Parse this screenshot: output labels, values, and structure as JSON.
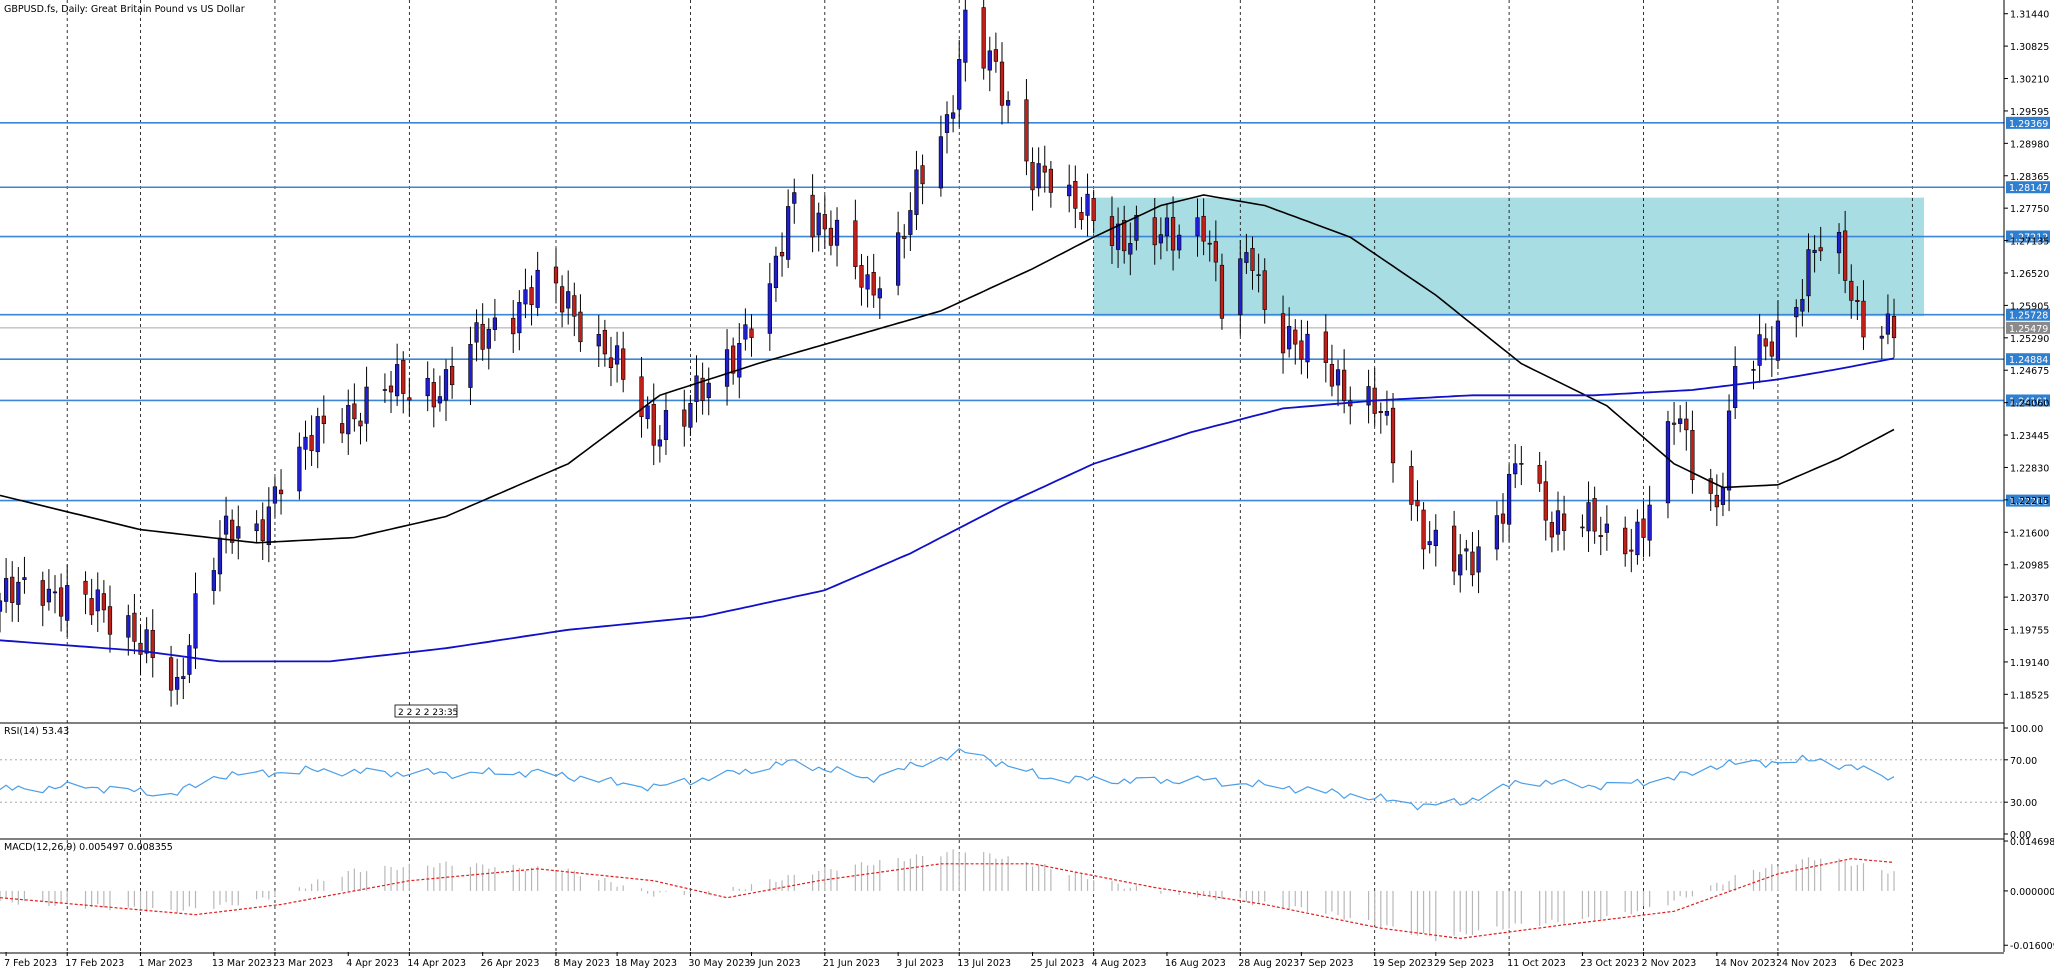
{
  "chart_data": {
    "type": "candlestick",
    "symbol_title": "GBPUSD.fs, Daily:  Great Britain Pound vs US Dollar",
    "timestamp_label": "2 2 2 2 23:35",
    "price_axis": {
      "ylim": [
        1.18,
        1.317
      ],
      "ticks": [
        "1.31440",
        "1.30825",
        "1.30210",
        "1.29595",
        "1.28980",
        "1.28365",
        "1.27750",
        "1.27135",
        "1.26520",
        "1.25905",
        "1.25290",
        "1.24675",
        "1.24060",
        "1.23445",
        "1.22830",
        "1.22215",
        "1.21600",
        "1.20985",
        "1.20370",
        "1.19755",
        "1.19140",
        "1.18525"
      ]
    },
    "price_levels": [
      {
        "label": "1.29369",
        "value": 1.29369
      },
      {
        "label": "1.28147",
        "value": 1.28147
      },
      {
        "label": "1.27212",
        "value": 1.27212
      },
      {
        "label": "1.25728",
        "value": 1.25728
      },
      {
        "label": "1.24884",
        "value": 1.24884
      },
      {
        "label": "1.24101",
        "value": 1.24101
      },
      {
        "label": "1.22201",
        "value": 1.22201
      }
    ],
    "current_price": {
      "label": "1.25479",
      "value": 1.25479
    },
    "zone": {
      "from_date": "2023-08-04",
      "to_date": "2023-12-31",
      "low": 1.257,
      "high": 1.2795,
      "color": "#a8dde3"
    },
    "x_axis": {
      "start": "2023-02-06",
      "end": "2023-12-31",
      "ticks": [
        {
          "label": "7 Feb 2023",
          "date": "2023-02-07"
        },
        {
          "label": "17 Feb 2023",
          "date": "2023-02-17"
        },
        {
          "label": "1 Mar 2023",
          "date": "2023-03-01"
        },
        {
          "label": "13 Mar 2023",
          "date": "2023-03-13"
        },
        {
          "label": "23 Mar 2023",
          "date": "2023-03-23"
        },
        {
          "label": "4 Apr 2023",
          "date": "2023-04-04"
        },
        {
          "label": "14 Apr 2023",
          "date": "2023-04-14"
        },
        {
          "label": "26 Apr 2023",
          "date": "2023-04-26"
        },
        {
          "label": "8 May 2023",
          "date": "2023-05-08"
        },
        {
          "label": "18 May 2023",
          "date": "2023-05-18"
        },
        {
          "label": "30 May 2023",
          "date": "2023-05-30"
        },
        {
          "label": "9 Jun 2023",
          "date": "2023-06-09"
        },
        {
          "label": "21 Jun 2023",
          "date": "2023-06-21"
        },
        {
          "label": "3 Jul 2023",
          "date": "2023-07-03"
        },
        {
          "label": "13 Jul 2023",
          "date": "2023-07-13"
        },
        {
          "label": "25 Jul 2023",
          "date": "2023-07-25"
        },
        {
          "label": "4 Aug 2023",
          "date": "2023-08-04"
        },
        {
          "label": "16 Aug 2023",
          "date": "2023-08-16"
        },
        {
          "label": "28 Aug 2023",
          "date": "2023-08-28"
        },
        {
          "label": "7 Sep 2023",
          "date": "2023-09-07"
        },
        {
          "label": "19 Sep 2023",
          "date": "2023-09-19"
        },
        {
          "label": "29 Sep 2023",
          "date": "2023-09-29"
        },
        {
          "label": "11 Oct 2023",
          "date": "2023-10-11"
        },
        {
          "label": "23 Oct 2023",
          "date": "2023-10-23"
        },
        {
          "label": "2 Nov 2023",
          "date": "2023-11-02"
        },
        {
          "label": "14 Nov 2023",
          "date": "2023-11-14"
        },
        {
          "label": "24 Nov 2023",
          "date": "2023-11-24"
        },
        {
          "label": "6 Dec 2023",
          "date": "2023-12-06"
        }
      ]
    },
    "vertical_grid_dates": [
      "2023-02-17",
      "2023-03-01",
      "2023-03-23",
      "2023-04-14",
      "2023-05-08",
      "2023-05-30",
      "2023-06-21",
      "2023-07-13",
      "2023-08-04",
      "2023-08-28",
      "2023-09-19",
      "2023-10-11",
      "2023-11-02",
      "2023-11-24",
      "2023-12-16"
    ],
    "close_anchors": [
      [
        "2023-02-06",
        1.203
      ],
      [
        "2023-02-13",
        1.206
      ],
      [
        "2023-02-20",
        1.202
      ],
      [
        "2023-02-27",
        1.199
      ],
      [
        "2023-03-01",
        1.196
      ],
      [
        "2023-03-07",
        1.184
      ],
      [
        "2023-03-10",
        1.203
      ],
      [
        "2023-03-14",
        1.216
      ],
      [
        "2023-03-20",
        1.214
      ],
      [
        "2023-03-24",
        1.228
      ],
      [
        "2023-03-29",
        1.233
      ],
      [
        "2023-04-03",
        1.238
      ],
      [
        "2023-04-10",
        1.243
      ],
      [
        "2023-04-14",
        1.243
      ],
      [
        "2023-04-20",
        1.244
      ],
      [
        "2023-04-28",
        1.256
      ],
      [
        "2023-05-05",
        1.262
      ],
      [
        "2023-05-10",
        1.26
      ],
      [
        "2023-05-16",
        1.25
      ],
      [
        "2023-05-24",
        1.236
      ],
      [
        "2023-05-29",
        1.238
      ],
      [
        "2023-06-02",
        1.244
      ],
      [
        "2023-06-06",
        1.251
      ],
      [
        "2023-06-12",
        1.26
      ],
      [
        "2023-06-16",
        1.281
      ],
      [
        "2023-06-21",
        1.274
      ],
      [
        "2023-06-28",
        1.262
      ],
      [
        "2023-07-03",
        1.271
      ],
      [
        "2023-07-07",
        1.283
      ],
      [
        "2023-07-11",
        1.293
      ],
      [
        "2023-07-14",
        1.314
      ],
      [
        "2023-07-18",
        1.305
      ],
      [
        "2023-07-24",
        1.286
      ],
      [
        "2023-07-27",
        1.285
      ],
      [
        "2023-08-01",
        1.276
      ],
      [
        "2023-08-04",
        1.277
      ],
      [
        "2023-08-09",
        1.272
      ],
      [
        "2023-08-14",
        1.271
      ],
      [
        "2023-08-18",
        1.274
      ],
      [
        "2023-08-22",
        1.275
      ],
      [
        "2023-08-25",
        1.258
      ],
      [
        "2023-08-30",
        1.27
      ],
      [
        "2023-09-01",
        1.259
      ],
      [
        "2023-09-06",
        1.25
      ],
      [
        "2023-09-11",
        1.249
      ],
      [
        "2023-09-15",
        1.242
      ],
      [
        "2023-09-20",
        1.238
      ],
      [
        "2023-09-25",
        1.223
      ],
      [
        "2023-09-28",
        1.214
      ],
      [
        "2023-10-03",
        1.209
      ],
      [
        "2023-10-06",
        1.213
      ],
      [
        "2023-10-10",
        1.222
      ],
      [
        "2023-10-13",
        1.23
      ],
      [
        "2023-10-17",
        1.218
      ],
      [
        "2023-10-23",
        1.22
      ],
      [
        "2023-10-27",
        1.213
      ],
      [
        "2023-10-31",
        1.214
      ],
      [
        "2023-11-03",
        1.222
      ],
      [
        "2023-11-07",
        1.238
      ],
      [
        "2023-11-10",
        1.229
      ],
      [
        "2023-11-14",
        1.221
      ],
      [
        "2023-11-17",
        1.246
      ],
      [
        "2023-11-22",
        1.25
      ],
      [
        "2023-11-27",
        1.261
      ],
      [
        "2023-11-30",
        1.27
      ],
      [
        "2023-12-04",
        1.268
      ],
      [
        "2023-12-07",
        1.258
      ],
      [
        "2023-12-11",
        1.255
      ],
      [
        "2023-12-13",
        1.2548
      ]
    ],
    "ma50": [
      [
        "2023-02-06",
        1.223
      ],
      [
        "2023-03-01",
        1.2165
      ],
      [
        "2023-03-20",
        1.214
      ],
      [
        "2023-04-05",
        1.215
      ],
      [
        "2023-04-20",
        1.219
      ],
      [
        "2023-05-10",
        1.229
      ],
      [
        "2023-05-25",
        1.242
      ],
      [
        "2023-06-10",
        1.248
      ],
      [
        "2023-06-25",
        1.253
      ],
      [
        "2023-07-10",
        1.258
      ],
      [
        "2023-07-25",
        1.266
      ],
      [
        "2023-08-04",
        1.272
      ],
      [
        "2023-08-15",
        1.278
      ],
      [
        "2023-08-22",
        1.28
      ],
      [
        "2023-09-01",
        1.278
      ],
      [
        "2023-09-15",
        1.272
      ],
      [
        "2023-09-29",
        1.261
      ],
      [
        "2023-10-13",
        1.248
      ],
      [
        "2023-10-27",
        1.24
      ],
      [
        "2023-11-07",
        1.229
      ],
      [
        "2023-11-15",
        1.2245
      ],
      [
        "2023-11-24",
        1.225
      ],
      [
        "2023-12-04",
        1.23
      ],
      [
        "2023-12-13",
        1.2355
      ]
    ],
    "ma200": [
      [
        "2023-02-06",
        1.1955
      ],
      [
        "2023-03-01",
        1.1935
      ],
      [
        "2023-03-14",
        1.1915
      ],
      [
        "2023-04-01",
        1.1915
      ],
      [
        "2023-04-20",
        1.194
      ],
      [
        "2023-05-10",
        1.1975
      ],
      [
        "2023-06-01",
        1.2
      ],
      [
        "2023-06-21",
        1.205
      ],
      [
        "2023-07-05",
        1.212
      ],
      [
        "2023-07-20",
        1.221
      ],
      [
        "2023-08-04",
        1.229
      ],
      [
        "2023-08-20",
        1.235
      ],
      [
        "2023-09-04",
        1.2395
      ],
      [
        "2023-09-19",
        1.241
      ],
      [
        "2023-10-05",
        1.242
      ],
      [
        "2023-10-25",
        1.242
      ],
      [
        "2023-11-10",
        1.243
      ],
      [
        "2023-11-24",
        1.245
      ],
      [
        "2023-12-04",
        1.247
      ],
      [
        "2023-12-13",
        1.249
      ]
    ],
    "rsi": {
      "title": "RSI(14) 53.43",
      "ylim": [
        0,
        100
      ],
      "ticks": [
        "100.00",
        "70.00",
        "30.00",
        "0.00"
      ],
      "levels": [
        70,
        30
      ],
      "anchors": [
        [
          "2023-02-06",
          42
        ],
        [
          "2023-02-20",
          45
        ],
        [
          "2023-03-06",
          37
        ],
        [
          "2023-03-14",
          55
        ],
        [
          "2023-03-29",
          60
        ],
        [
          "2023-04-14",
          57
        ],
        [
          "2023-05-05",
          58
        ],
        [
          "2023-05-24",
          44
        ],
        [
          "2023-06-02",
          53
        ],
        [
          "2023-06-16",
          68
        ],
        [
          "2023-06-28",
          52
        ],
        [
          "2023-07-14",
          78
        ],
        [
          "2023-07-27",
          53
        ],
        [
          "2023-08-10",
          50
        ],
        [
          "2023-08-22",
          51
        ],
        [
          "2023-09-06",
          43
        ],
        [
          "2023-09-15",
          37
        ],
        [
          "2023-09-27",
          27
        ],
        [
          "2023-10-03",
          29
        ],
        [
          "2023-10-13",
          50
        ],
        [
          "2023-10-27",
          45
        ],
        [
          "2023-11-07",
          53
        ],
        [
          "2023-11-15",
          66
        ],
        [
          "2023-11-24",
          68
        ],
        [
          "2023-12-01",
          70
        ],
        [
          "2023-12-13",
          53
        ]
      ]
    },
    "macd": {
      "title": "MACD(12,26,9) 0.005497 0.008355",
      "ylim": [
        -0.018,
        0.015
      ],
      "ticks": [
        "0.014698",
        "0.000000",
        "-0.016009"
      ],
      "hist_anchors": [
        [
          "2023-02-06",
          -0.003
        ],
        [
          "2023-03-06",
          -0.006
        ],
        [
          "2023-03-20",
          -0.003
        ],
        [
          "2023-04-05",
          0.006
        ],
        [
          "2023-04-20",
          0.008
        ],
        [
          "2023-05-10",
          0.006
        ],
        [
          "2023-05-24",
          -0.001
        ],
        [
          "2023-06-05",
          0.0
        ],
        [
          "2023-06-20",
          0.006
        ],
        [
          "2023-07-14",
          0.012
        ],
        [
          "2023-07-25",
          0.008
        ],
        [
          "2023-08-10",
          0.001
        ],
        [
          "2023-08-24",
          -0.002
        ],
        [
          "2023-09-10",
          -0.006
        ],
        [
          "2023-09-29",
          -0.014
        ],
        [
          "2023-10-13",
          -0.01
        ],
        [
          "2023-10-27",
          -0.008
        ],
        [
          "2023-11-07",
          -0.003
        ],
        [
          "2023-11-20",
          0.006
        ],
        [
          "2023-12-01",
          0.01
        ],
        [
          "2023-12-13",
          0.0055
        ]
      ],
      "signal_anchors": [
        [
          "2023-02-06",
          -0.002
        ],
        [
          "2023-03-10",
          -0.007
        ],
        [
          "2023-03-24",
          -0.004
        ],
        [
          "2023-04-14",
          0.003
        ],
        [
          "2023-05-05",
          0.0065
        ],
        [
          "2023-05-24",
          0.003
        ],
        [
          "2023-06-05",
          -0.002
        ],
        [
          "2023-06-20",
          0.003
        ],
        [
          "2023-07-10",
          0.008
        ],
        [
          "2023-07-25",
          0.008
        ],
        [
          "2023-08-14",
          0.001
        ],
        [
          "2023-09-01",
          -0.004
        ],
        [
          "2023-09-20",
          -0.011
        ],
        [
          "2023-10-03",
          -0.014
        ],
        [
          "2023-10-20",
          -0.01
        ],
        [
          "2023-11-07",
          -0.006
        ],
        [
          "2023-11-24",
          0.005
        ],
        [
          "2023-12-06",
          0.0095
        ],
        [
          "2023-12-13",
          0.0084
        ]
      ]
    },
    "colors": {
      "bull": "#1f1fd0",
      "bear": "#c0201a",
      "level_line": "#3b86d6",
      "level_tag": "#2f7fd0",
      "ma50": "#000000",
      "ma200": "#1010c8",
      "rsi_line": "#4a9ee8",
      "macd_hist": "#b8b8b8",
      "macd_signal": "#e02020",
      "grid": "#000000"
    }
  }
}
